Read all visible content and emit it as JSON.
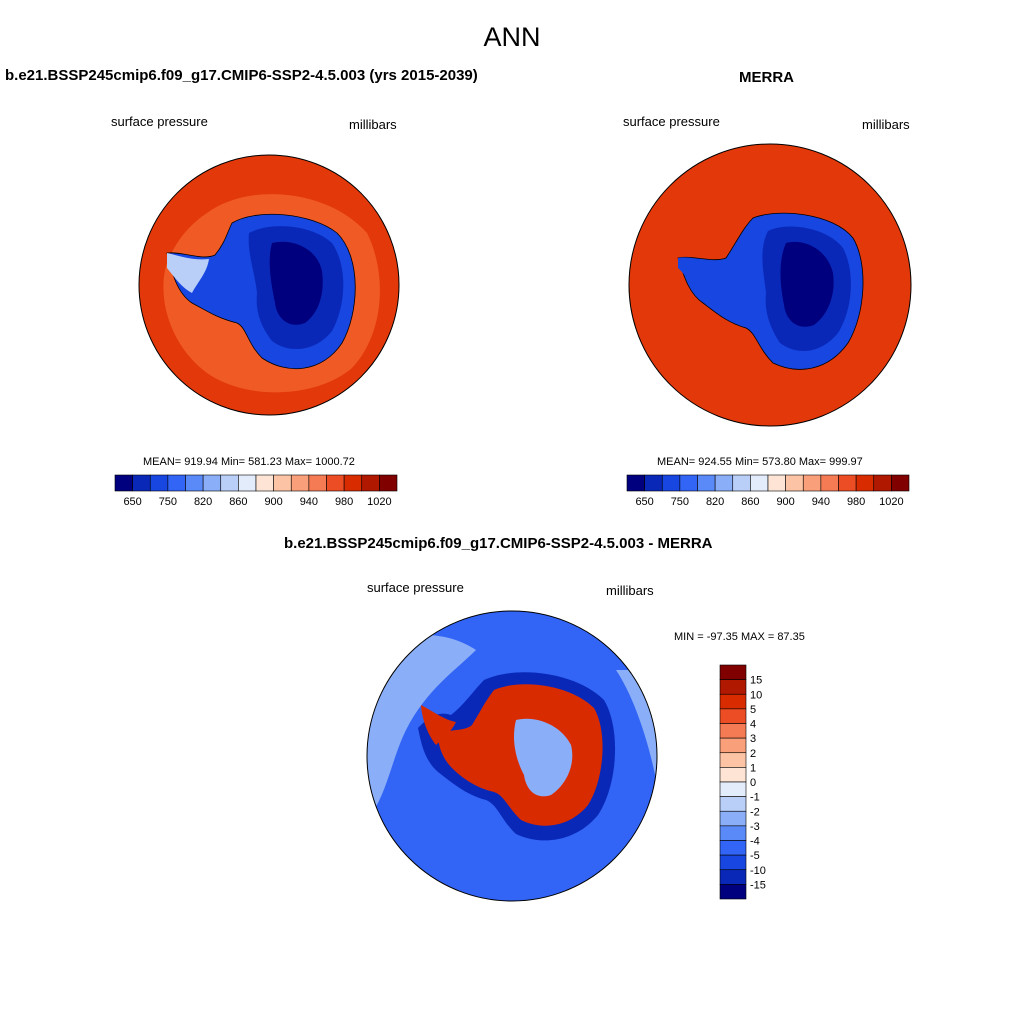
{
  "title": "ANN",
  "panels": [
    {
      "title": "b.e21.BSSP245cmip6.f09_g17.CMIP6-SSP2-4.5.003 (yrs 2015-2039)",
      "left_label": "surface pressure",
      "right_label": "millibars",
      "stats": "MEAN= 919.94  Min= 581.23  Max= 1000.72"
    },
    {
      "title": "MERRA",
      "left_label": "surface pressure",
      "right_label": "millibars",
      "stats": "MEAN= 924.55  Min= 573.80  Max= 999.97"
    },
    {
      "title": "b.e21.BSSP245cmip6.f09_g17.CMIP6-SSP2-4.5.003 - MERRA",
      "left_label": "surface pressure",
      "right_label": "millibars",
      "stats": "MIN = -97.35 MAX =  87.35"
    }
  ],
  "colorbar_main": {
    "colors": [
      "#00007e",
      "#0a28b8",
      "#1746e0",
      "#3265f5",
      "#5a8af7",
      "#8aaef7",
      "#b9cff8",
      "#e2ecfb",
      "#fde4d4",
      "#fcc4a5",
      "#f9a07a",
      "#f47b53",
      "#ec4d25",
      "#d92b00",
      "#b01800",
      "#800000"
    ],
    "ticks": [
      "650",
      "750",
      "820",
      "860",
      "900",
      "940",
      "980",
      "1020"
    ]
  },
  "colorbar_diff": {
    "colors": [
      "#800000",
      "#b01800",
      "#d92b00",
      "#ec4d25",
      "#f47b53",
      "#f9a07a",
      "#fcc4a5",
      "#fde4d4",
      "#e2ecfb",
      "#b9cff8",
      "#8aaef7",
      "#5a8af7",
      "#3265f5",
      "#1746e0",
      "#0a28b8",
      "#00007e"
    ],
    "ticks": [
      "15",
      "10",
      "5",
      "4",
      "3",
      "2",
      "1",
      "0",
      "-1",
      "-2",
      "-3",
      "-4",
      "-5",
      "-10",
      "-15"
    ]
  },
  "map_colors": {
    "ocean": "#e2380a",
    "ring": "#f05a25",
    "ice_light": "#1746e0",
    "ice_mid": "#0a28b8",
    "ice_dark": "#00007e",
    "diff_ocean": "#3265f5",
    "diff_light": "#8aaef7",
    "diff_red": "#d92b00"
  }
}
